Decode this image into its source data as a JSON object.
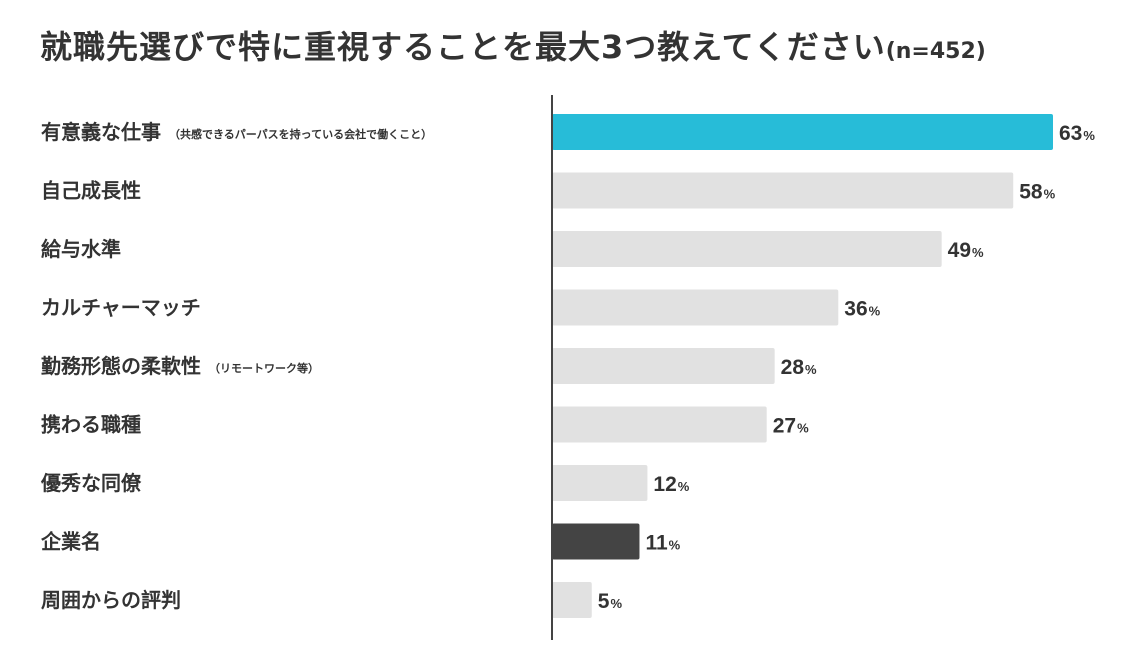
{
  "chart_data": {
    "type": "bar",
    "orientation": "horizontal",
    "title": "就職先選びで特に重視することを最大3つ教えてください",
    "sample_label": "(n=452)",
    "value_unit": "%",
    "xlim": [
      0,
      63
    ],
    "grid": false,
    "legend": "none",
    "categories": [
      {
        "label": "有意義な仕事",
        "note": "（共感できるパーパスを持っている会社で働くこと）"
      },
      {
        "label": "自己成長性",
        "note": ""
      },
      {
        "label": "給与水準",
        "note": ""
      },
      {
        "label": "カルチャーマッチ",
        "note": ""
      },
      {
        "label": "勤務形態の柔軟性",
        "note": "（リモートワーク等）"
      },
      {
        "label": "携わる職種",
        "note": ""
      },
      {
        "label": "優秀な同僚",
        "note": ""
      },
      {
        "label": "企業名",
        "note": ""
      },
      {
        "label": "周囲からの評判",
        "note": ""
      }
    ],
    "values": [
      63,
      58,
      49,
      36,
      28,
      27,
      12,
      11,
      5
    ],
    "bar_colors": [
      "#27bcd8",
      "#e1e1e1",
      "#e1e1e1",
      "#e1e1e1",
      "#e1e1e1",
      "#e1e1e1",
      "#e1e1e1",
      "#444444",
      "#e1e1e1"
    ],
    "axis_color": "#444444"
  }
}
